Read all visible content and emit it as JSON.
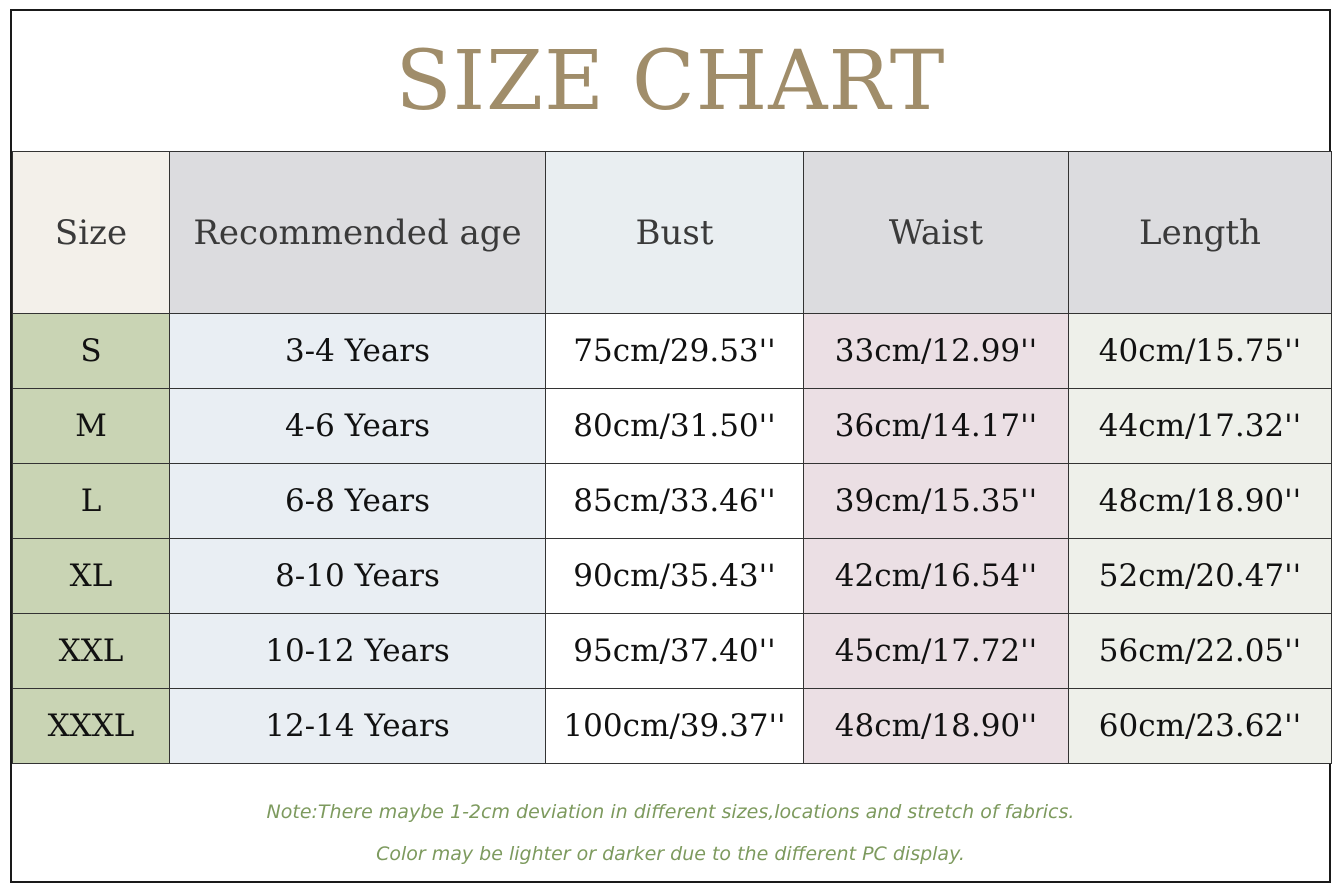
{
  "title": "SIZE CHART",
  "table": {
    "headers": [
      "Size",
      "Recommended age",
      "Bust",
      "Waist",
      "Length"
    ],
    "rows": [
      [
        "S",
        "3-4 Years",
        "75cm/29.53''",
        "33cm/12.99''",
        "40cm/15.75''"
      ],
      [
        "M",
        "4-6 Years",
        "80cm/31.50''",
        "36cm/14.17''",
        "44cm/17.32''"
      ],
      [
        "L",
        "6-8 Years",
        "85cm/33.46''",
        "39cm/15.35''",
        "48cm/18.90''"
      ],
      [
        "XL",
        "8-10 Years",
        "90cm/35.43''",
        "42cm/16.54''",
        "52cm/20.47''"
      ],
      [
        "XXL",
        "10-12 Years",
        "95cm/37.40''",
        "45cm/17.72''",
        "56cm/22.05''"
      ],
      [
        "XXXL",
        "12-14 Years",
        "100cm/39.37''",
        "48cm/18.90''",
        "60cm/23.62''"
      ]
    ]
  },
  "notes": {
    "line1": "Note:There maybe 1-2cm deviation in different sizes,locations and stretch of fabrics.",
    "line2": "Color may be lighter or darker due to the different PC display."
  },
  "colors": {
    "title": "#a08d6a",
    "note": "#7d9a5e",
    "size_column": "#c9d4b4",
    "age_column": "#e9eef3",
    "waist_column": "#ebdfe4",
    "length_column": "#eef0ea"
  }
}
